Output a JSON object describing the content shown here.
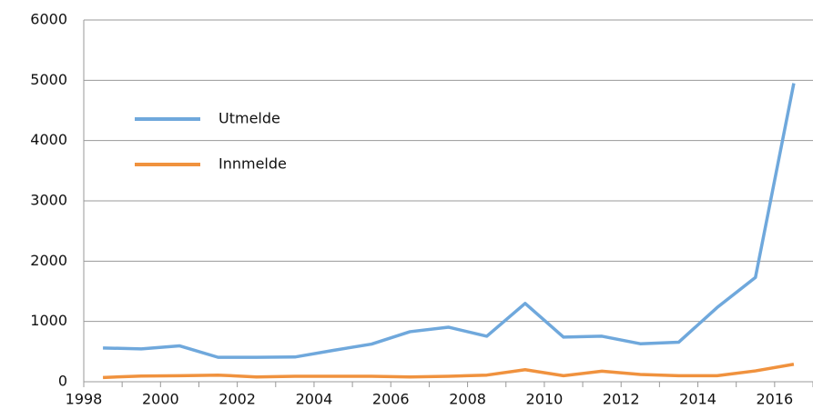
{
  "chart_data": {
    "type": "line",
    "categories": [
      "1998",
      null,
      "2000",
      null,
      "2002",
      null,
      "2004",
      null,
      "2006",
      null,
      "2008",
      null,
      "2010",
      null,
      "2012",
      null,
      "2014",
      null,
      "2016"
    ],
    "series": [
      {
        "name": "Utmelde",
        "color": "#6fa8dc",
        "values": [
          560,
          545,
          595,
          405,
          405,
          410,
          520,
          625,
          830,
          905,
          755,
          1300,
          740,
          755,
          630,
          655,
          1230,
          1730,
          4950
        ]
      },
      {
        "name": "Innmelde",
        "color": "#f0923e",
        "values": [
          70,
          95,
          100,
          110,
          80,
          90,
          90,
          90,
          80,
          90,
          110,
          200,
          100,
          175,
          120,
          100,
          100,
          180,
          290
        ]
      }
    ],
    "ylim": [
      0,
      6000
    ],
    "yticks": [
      0,
      1000,
      2000,
      3000,
      4000,
      5000,
      6000
    ],
    "grid": true,
    "legend": "upper-left"
  }
}
